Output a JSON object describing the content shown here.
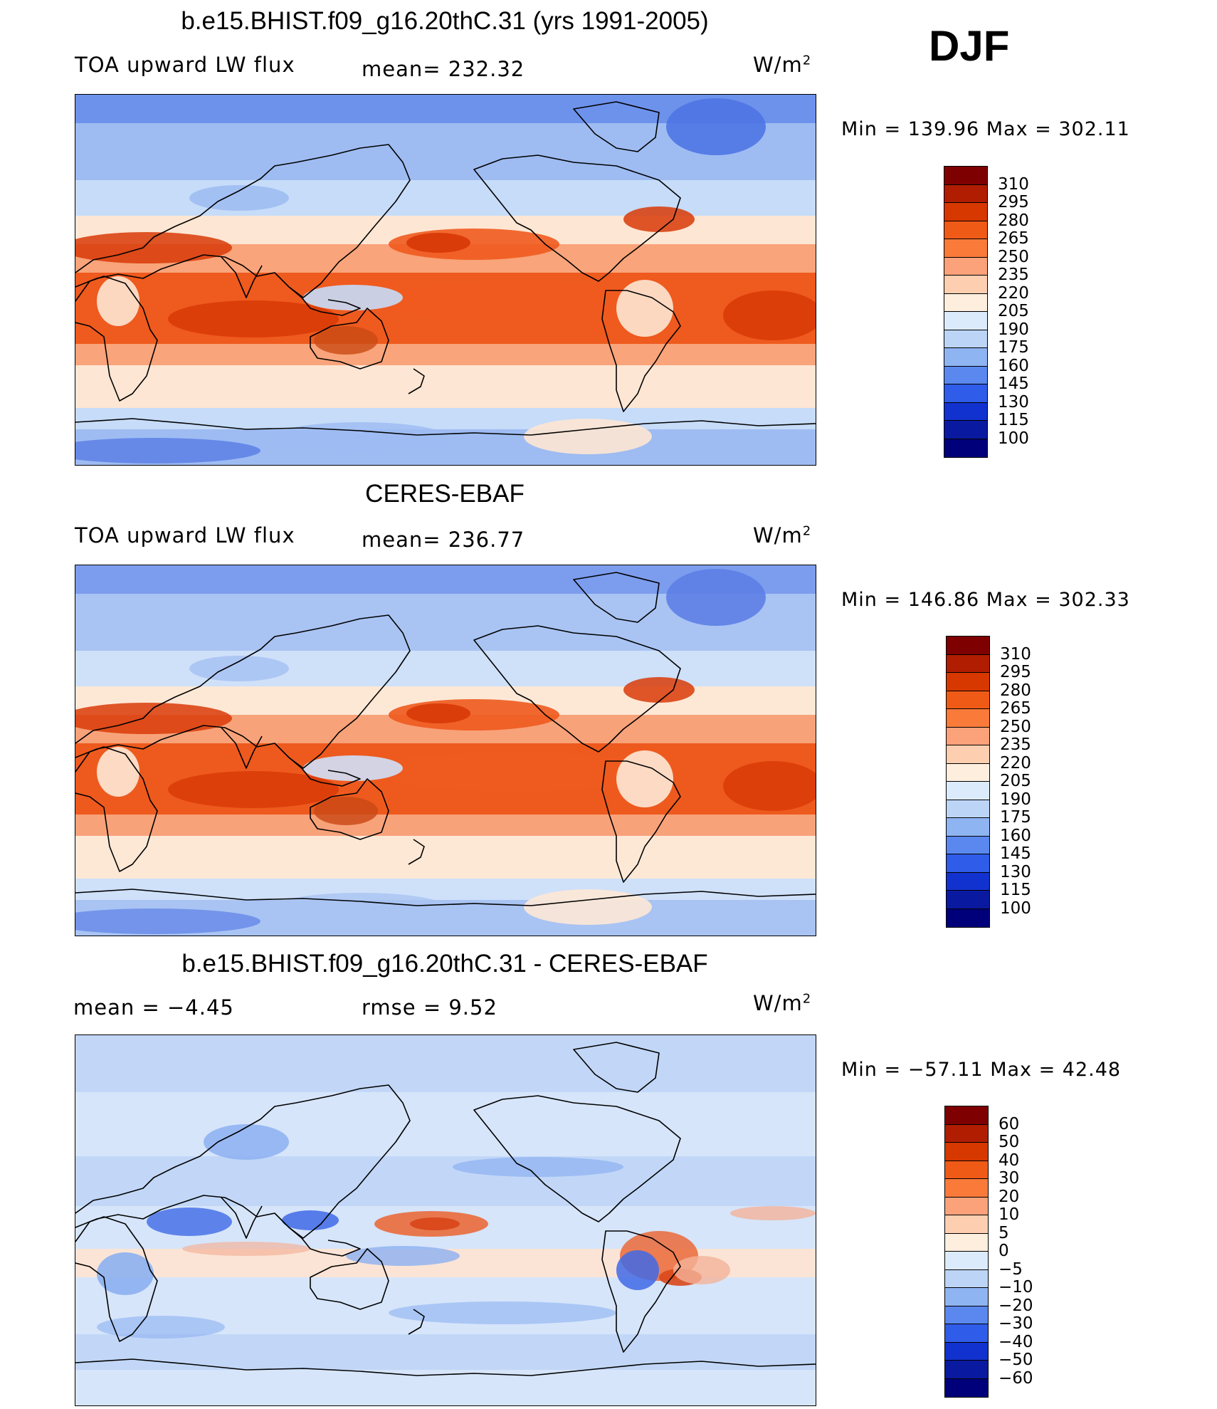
{
  "season": "DJF",
  "panels": [
    {
      "title": "b.e15.BHIST.f09_g16.20thC.31 (yrs 1991-2005)",
      "variable": "TOA upward LW flux",
      "stat_text": "mean= 232.32",
      "units": "W/m",
      "units_exp": "2",
      "minmax": "Min  =  139.96  Max  =  302.11",
      "colorbar": {
        "labels": [
          "310",
          "295",
          "280",
          "265",
          "250",
          "235",
          "220",
          "205",
          "190",
          "175",
          "160",
          "145",
          "130",
          "115",
          "100"
        ],
        "colors": [
          "#7f0000",
          "#b01d00",
          "#d63800",
          "#f05a17",
          "#fa7a3a",
          "#fba27a",
          "#fdcfb0",
          "#fdeede",
          "#dcebfb",
          "#bcd5f6",
          "#8fb4f2",
          "#5a88ee",
          "#2f5ce8",
          "#1232cf",
          "#0a1aa0",
          "#00007a"
        ]
      },
      "map_palette": {
        "polar": "#9ebcf2",
        "mid": "#c6dcf8",
        "sub": "#fde6d3",
        "warm": "#f9a47a",
        "hot": "#ef5a1e",
        "hottest": "#d83a07",
        "dry": "#c94a14",
        "cold": "#6d92ec",
        "deep": "#4e74e4"
      }
    },
    {
      "title": "CERES-EBAF",
      "variable": "TOA upward LW flux",
      "stat_text": "mean= 236.77",
      "units": "W/m",
      "units_exp": "2",
      "minmax": "Min  =  146.86  Max  =  302.33",
      "colorbar": {
        "labels": [
          "310",
          "295",
          "280",
          "265",
          "250",
          "235",
          "220",
          "205",
          "190",
          "175",
          "160",
          "145",
          "130",
          "115",
          "100"
        ],
        "colors": [
          "#7f0000",
          "#b01d00",
          "#d63800",
          "#f05a17",
          "#fa7a3a",
          "#fba27a",
          "#fdcfb0",
          "#fdeede",
          "#dcebfb",
          "#bcd5f6",
          "#8fb4f2",
          "#5a88ee",
          "#2f5ce8",
          "#1232cf",
          "#0a1aa0",
          "#00007a"
        ]
      },
      "map_palette": {
        "polar": "#a9c4f3",
        "mid": "#cfe0f9",
        "sub": "#fde8d6",
        "warm": "#f8a27a",
        "hot": "#ee5a1e",
        "hottest": "#d93b08",
        "dry": "#c84713",
        "cold": "#7c9dee",
        "deep": "#5d80e6"
      }
    },
    {
      "title": "b.e15.BHIST.f09_g16.20thC.31 - CERES-EBAF",
      "variable": "mean  =    −4.45",
      "stat_text": "rmse  =     9.52",
      "units": "W/m",
      "units_exp": "2",
      "minmax": "Min  = −57.11  Max  =   42.48",
      "colorbar": {
        "labels": [
          "60",
          "50",
          "40",
          "30",
          "20",
          "10",
          "5",
          "0",
          "−5",
          "−10",
          "−20",
          "−30",
          "−40",
          "−50",
          "−60"
        ],
        "colors": [
          "#7f0000",
          "#b01d00",
          "#d63800",
          "#f05a17",
          "#fa7a3a",
          "#fba27a",
          "#fdcfb0",
          "#fdeede",
          "#dcebfb",
          "#bcd5f6",
          "#8fb4f2",
          "#5a88ee",
          "#2f5ce8",
          "#1232cf",
          "#0a1aa0",
          "#00007a"
        ]
      },
      "map_palette": {
        "polar": "#c2d7f7",
        "mid": "#d6e5fa",
        "sub": "#fbe4d6",
        "warm": "#f4b39a",
        "hot": "#ea6a3a",
        "hottest": "#d9481a",
        "dry": "#e25a2a",
        "cold": "#8cb0f1",
        "deep": "#3f6ae6"
      }
    }
  ]
}
